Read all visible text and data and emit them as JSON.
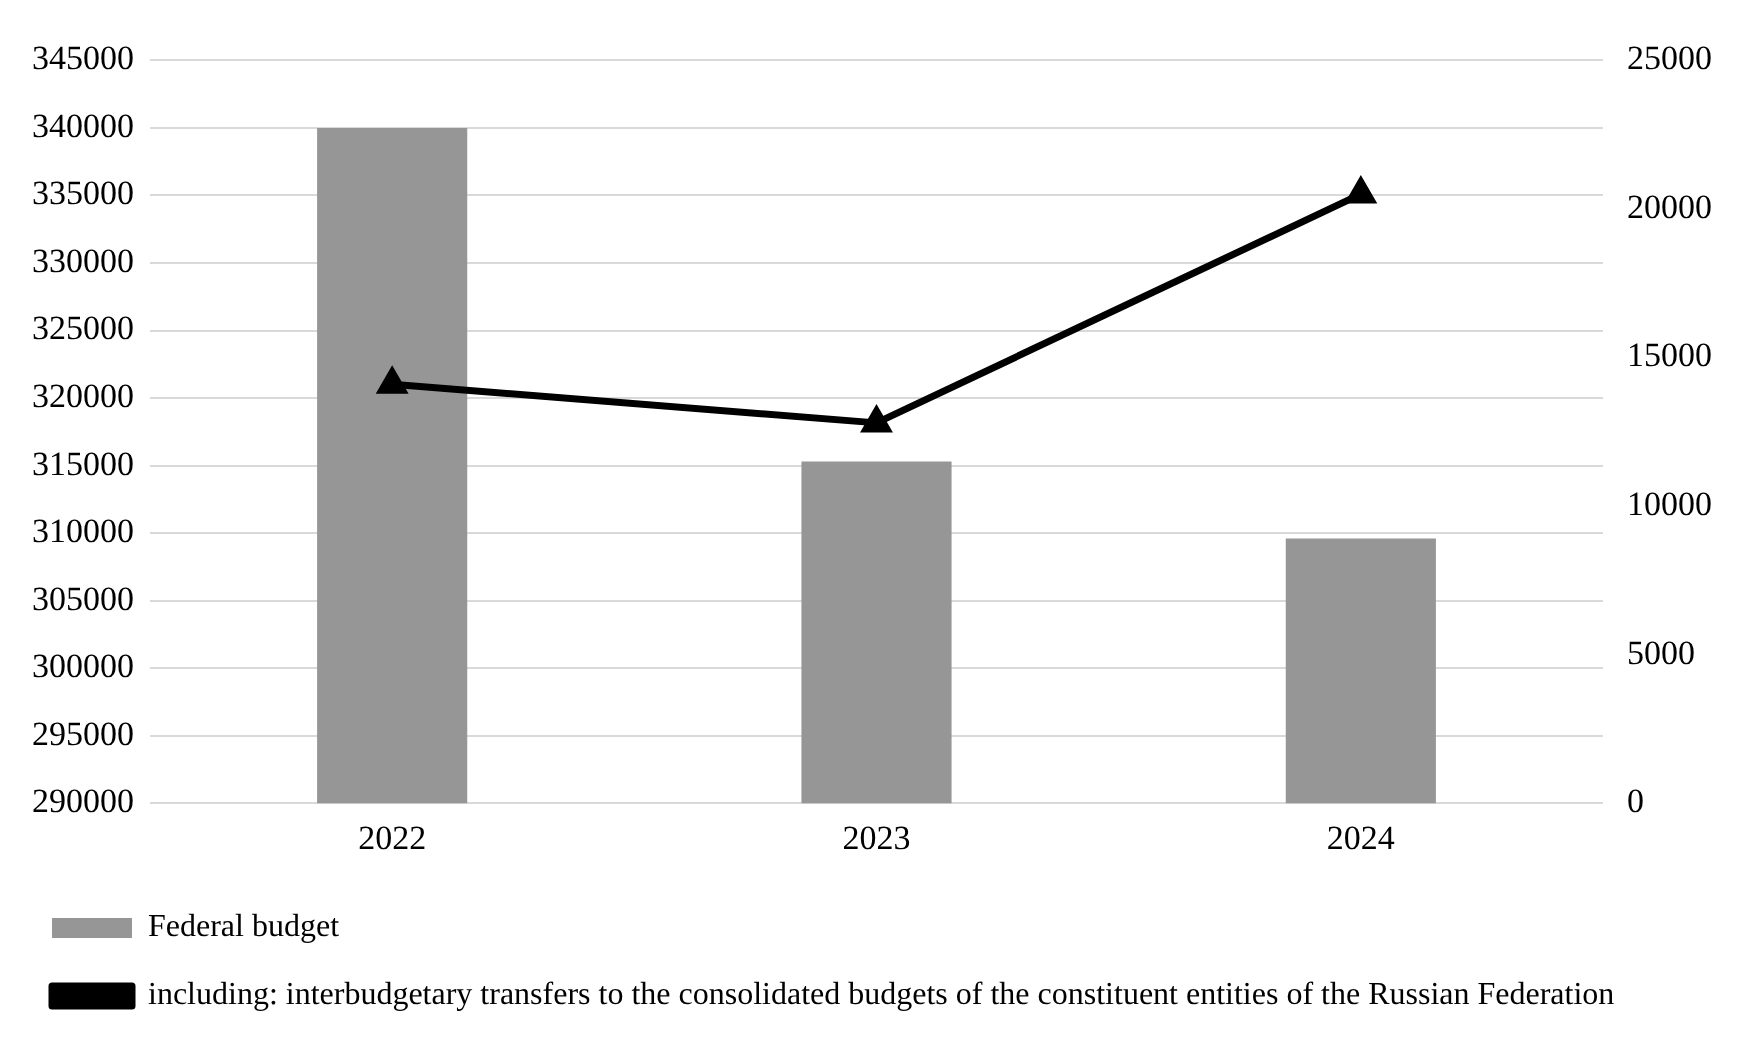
{
  "chart_data": {
    "type": "bar",
    "categories": [
      "2022",
      "2023",
      "2024"
    ],
    "series": [
      {
        "name": "Federal budget",
        "color": "#969696",
        "values": [
          340000,
          315300,
          309600
        ]
      },
      {
        "name": "including: interbudgetary transfers to the consolidated budgets of the constituent entities of the Russian Federation",
        "type": "line",
        "axis": "y2",
        "color": "#000000",
        "values": [
          14100,
          12800,
          20500
        ]
      }
    ],
    "ylim": [
      290000,
      345000
    ],
    "yticks": [
      290000,
      295000,
      300000,
      305000,
      310000,
      315000,
      320000,
      325000,
      330000,
      335000,
      340000,
      345000
    ],
    "y2lim": [
      0,
      25000
    ],
    "y2ticks": [
      0,
      5000,
      10000,
      15000,
      20000,
      25000
    ],
    "grid": "y",
    "legend": "bottom",
    "marker": "triangle",
    "line_style": "solid"
  }
}
